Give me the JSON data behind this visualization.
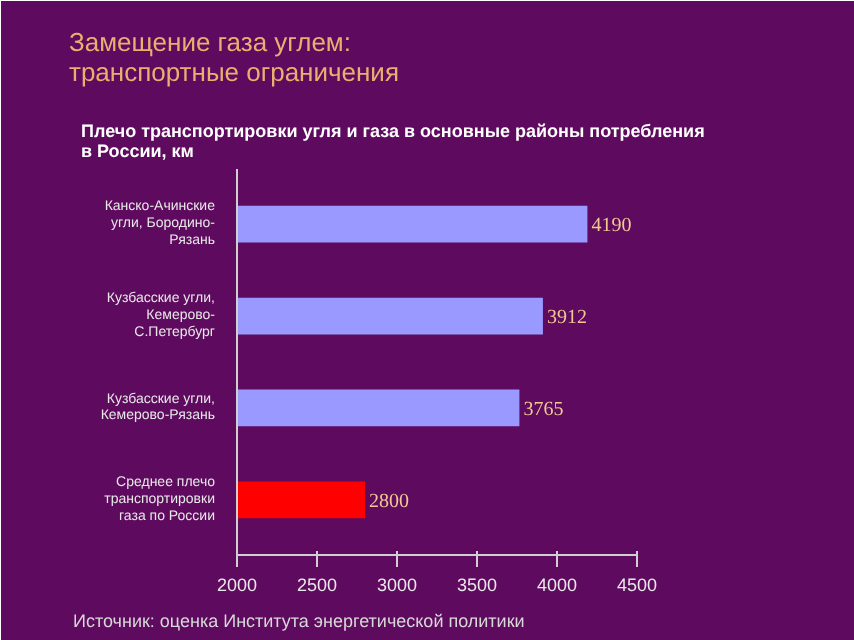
{
  "chart_data": {
    "type": "bar",
    "orientation": "horizontal",
    "title": "Замещение газа углем:\nтранспортные ограничения",
    "subtitle": "Плечо транспортировки угля и газа в основные районы потребления\nв России, км",
    "categories": [
      "Канско-Ачинские\nугли, Бородино-\nРязань",
      "Кузбасские угли,\nКемерово-\nС.Петербург",
      "Кузбасские угли,\nКемерово-Рязань",
      "Среднее плечо\nтранспортировки\nгаза по России"
    ],
    "values": [
      4190,
      3912,
      3765,
      2800
    ],
    "colors": [
      "#9999ff",
      "#9999ff",
      "#9999ff",
      "#ff0000"
    ],
    "xlim": [
      2000,
      4500
    ],
    "xticks": [
      2000,
      2500,
      3000,
      3500,
      4000,
      4500
    ],
    "data_labels": true,
    "grid": false,
    "annotations": [
      "Источник: оценка Института энергетической политики"
    ]
  }
}
